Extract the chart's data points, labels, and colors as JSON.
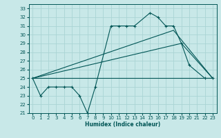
{
  "xlabel": "Humidex (Indice chaleur)",
  "background_color": "#c8e8e8",
  "grid_color": "#aad4d4",
  "line_color": "#005555",
  "xlim": [
    -0.5,
    23.5
  ],
  "ylim": [
    21,
    33.5
  ],
  "yticks": [
    21,
    22,
    23,
    24,
    25,
    26,
    27,
    28,
    29,
    30,
    31,
    32,
    33
  ],
  "xticks": [
    0,
    1,
    2,
    3,
    4,
    5,
    6,
    7,
    8,
    9,
    10,
    11,
    12,
    13,
    14,
    15,
    16,
    17,
    18,
    19,
    20,
    21,
    22,
    23
  ],
  "series_main": {
    "x": [
      0,
      1,
      2,
      3,
      4,
      5,
      6,
      7,
      8,
      10,
      11,
      12,
      13,
      15,
      16,
      17,
      18,
      19,
      20,
      22,
      23
    ],
    "y": [
      25,
      23,
      24,
      24,
      24,
      24,
      23,
      21,
      24,
      31,
      31,
      31,
      31,
      32.5,
      32,
      31,
      31,
      29,
      26.5,
      25,
      25
    ]
  },
  "series_fan": [
    {
      "x": [
        0,
        23
      ],
      "y": [
        25,
        25
      ]
    },
    {
      "x": [
        0,
        19,
        23
      ],
      "y": [
        25,
        29,
        25
      ]
    },
    {
      "x": [
        0,
        18,
        23
      ],
      "y": [
        25,
        30.5,
        25
      ]
    }
  ]
}
